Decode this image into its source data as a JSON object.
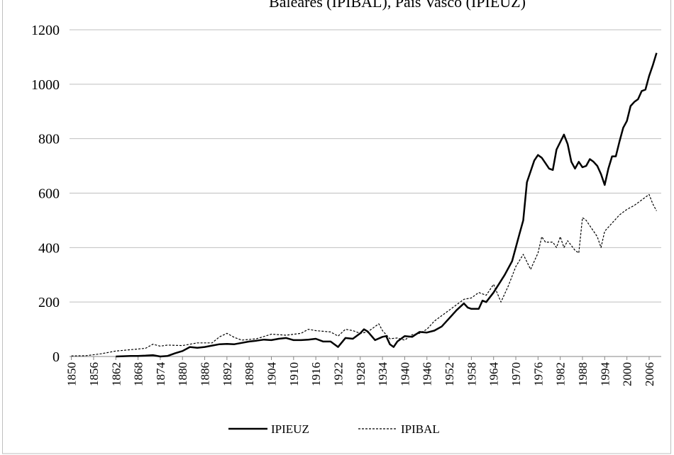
{
  "chart_data": {
    "type": "line",
    "title": "Baleares (IPIBAL), País Vasco (IPIEUZ)",
    "xlim": [
      1849.5,
      2008.5
    ],
    "xticks": [
      1850,
      1856,
      1862,
      1868,
      1874,
      1880,
      1886,
      1892,
      1898,
      1904,
      1910,
      1916,
      1922,
      1928,
      1934,
      1940,
      1946,
      1952,
      1958,
      1964,
      1970,
      1976,
      1982,
      1988,
      1994,
      2000,
      2006
    ],
    "ylim": [
      0,
      1200
    ],
    "yticks": [
      0,
      200,
      400,
      600,
      800,
      1000,
      1200
    ],
    "grid": true,
    "legend": "bottom",
    "series": [
      {
        "name": "IPIEUZ",
        "color": "#000000",
        "line_style": "solid",
        "x": [
          1862,
          1864,
          1866,
          1868,
          1870,
          1872,
          1874,
          1876,
          1878,
          1880,
          1882,
          1884,
          1886,
          1888,
          1890,
          1892,
          1894,
          1896,
          1898,
          1900,
          1902,
          1904,
          1906,
          1908,
          1910,
          1912,
          1914,
          1916,
          1918,
          1920,
          1922,
          1924,
          1926,
          1928,
          1929,
          1930,
          1932,
          1934,
          1935,
          1936,
          1937,
          1938,
          1940,
          1942,
          1944,
          1946,
          1948,
          1950,
          1952,
          1954,
          1956,
          1957,
          1958,
          1960,
          1961,
          1962,
          1964,
          1967,
          1969,
          1971,
          1972,
          1973,
          1975,
          1976,
          1977,
          1978,
          1979,
          1980,
          1981,
          1983,
          1984,
          1985,
          1986,
          1987,
          1988,
          1989,
          1990,
          1991,
          1992,
          1993,
          1994,
          1995,
          1996,
          1997,
          1998,
          1999,
          2000,
          2001,
          2002,
          2003,
          2004,
          2005,
          2006,
          2007,
          2008
        ],
        "values": [
          0,
          1,
          2,
          2,
          3,
          5,
          0,
          2,
          12,
          20,
          35,
          32,
          35,
          40,
          45,
          46,
          45,
          50,
          55,
          58,
          62,
          60,
          65,
          68,
          60,
          60,
          62,
          65,
          55,
          55,
          35,
          68,
          65,
          85,
          100,
          92,
          60,
          72,
          75,
          45,
          35,
          55,
          75,
          72,
          90,
          88,
          95,
          110,
          140,
          170,
          195,
          180,
          175,
          175,
          205,
          200,
          235,
          300,
          350,
          450,
          500,
          640,
          720,
          740,
          730,
          710,
          690,
          685,
          760,
          815,
          780,
          715,
          690,
          715,
          695,
          700,
          725,
          715,
          700,
          670,
          630,
          690,
          735,
          735,
          790,
          840,
          865,
          920,
          935,
          945,
          975,
          980,
          1030,
          1070,
          1115
        ]
      },
      {
        "name": "IPIBAL",
        "color": "#000000",
        "line_style": "dashed",
        "x": [
          1850,
          1854,
          1858,
          1862,
          1866,
          1870,
          1872,
          1874,
          1876,
          1880,
          1884,
          1888,
          1890,
          1892,
          1894,
          1896,
          1900,
          1904,
          1908,
          1912,
          1914,
          1916,
          1920,
          1922,
          1924,
          1926,
          1928,
          1930,
          1932,
          1933,
          1934,
          1936,
          1938,
          1940,
          1942,
          1944,
          1946,
          1948,
          1950,
          1952,
          1954,
          1956,
          1958,
          1960,
          1962,
          1964,
          1966,
          1968,
          1970,
          1972,
          1974,
          1976,
          1977,
          1978,
          1980,
          1981,
          1982,
          1983,
          1984,
          1986,
          1987,
          1988,
          1989,
          1990,
          1992,
          1993,
          1994,
          1996,
          1998,
          2000,
          2002,
          2004,
          2006,
          2007,
          2008
        ],
        "values": [
          2,
          3,
          10,
          20,
          25,
          30,
          45,
          38,
          42,
          40,
          50,
          50,
          72,
          85,
          70,
          60,
          65,
          82,
          78,
          85,
          100,
          95,
          90,
          75,
          100,
          95,
          85,
          90,
          110,
          120,
          95,
          65,
          68,
          60,
          80,
          85,
          100,
          130,
          150,
          170,
          190,
          210,
          215,
          235,
          225,
          265,
          200,
          260,
          330,
          375,
          320,
          380,
          440,
          420,
          420,
          400,
          440,
          400,
          425,
          390,
          380,
          510,
          500,
          480,
          440,
          400,
          460,
          490,
          520,
          540,
          555,
          575,
          595,
          560,
          535
        ]
      }
    ]
  }
}
